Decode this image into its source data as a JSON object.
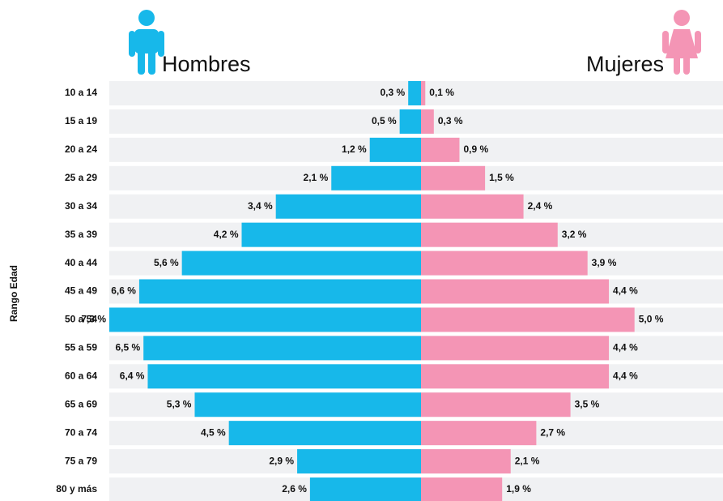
{
  "chart_data": {
    "type": "pyramid",
    "y_label": "Rango Edad",
    "categories": [
      "10 a 14",
      "15 a 19",
      "20 a 24",
      "25 a 29",
      "30 a 34",
      "35 a 39",
      "40 a 44",
      "45 a 49",
      "50 a 54",
      "55 a 59",
      "60 a 64",
      "65 a 69",
      "70 a 74",
      "75 a 79",
      "80 y más"
    ],
    "series": [
      {
        "name": "Hombres",
        "color": "#17b8ea",
        "values": [
          0.3,
          0.5,
          1.2,
          2.1,
          3.4,
          4.2,
          5.6,
          6.6,
          7.3,
          6.5,
          6.4,
          5.3,
          4.5,
          2.9,
          2.6
        ],
        "value_labels": [
          "0,3 %",
          "0,5 %",
          "1,2 %",
          "2,1 %",
          "3,4 %",
          "4,2 %",
          "5,6 %",
          "6,6 %",
          "7,3 %",
          "6,5 %",
          "6,4 %",
          "5,3 %",
          "4,5 %",
          "2,9 %",
          "2,6 %"
        ]
      },
      {
        "name": "Mujeres",
        "color": "#f495b5",
        "values": [
          0.1,
          0.3,
          0.9,
          1.5,
          2.4,
          3.2,
          3.9,
          4.4,
          5.0,
          4.4,
          4.4,
          3.5,
          2.7,
          2.1,
          1.9
        ],
        "value_labels": [
          "0,1 %",
          "0,3 %",
          "0,9 %",
          "1,5 %",
          "2,4 %",
          "3,2 %",
          "3,9 %",
          "4,4 %",
          "5,0 %",
          "4,4 %",
          "4,4 %",
          "3,5 %",
          "2,7 %",
          "2,1 %",
          "1,9 %"
        ]
      }
    ]
  }
}
